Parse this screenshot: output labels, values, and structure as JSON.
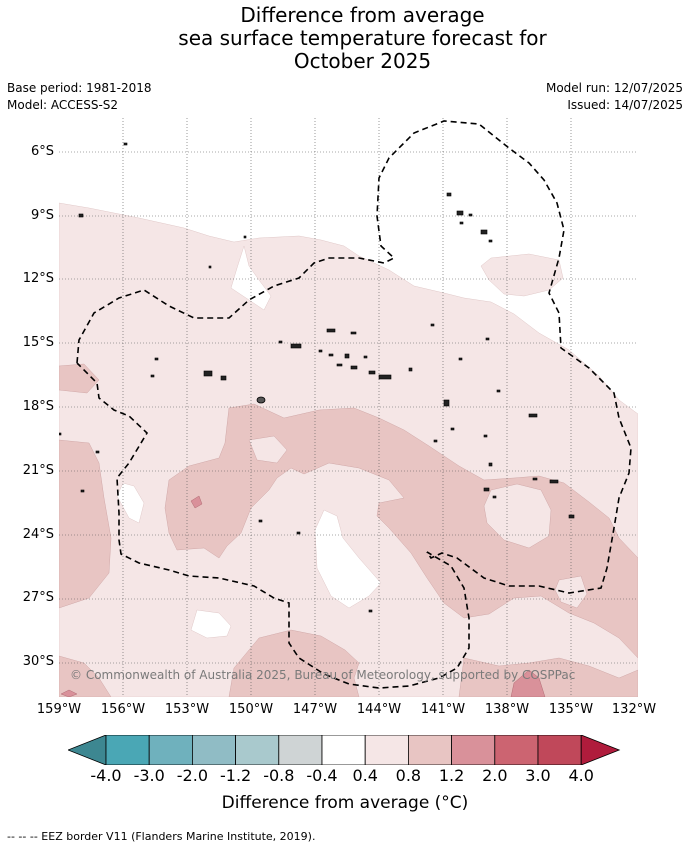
{
  "title": {
    "line1": "Difference from average",
    "line2": "sea surface temperature forecast for",
    "line3": "October 2025"
  },
  "meta": {
    "base_period": "Base period: 1981-2018",
    "model": "Model: ACCESS-S2",
    "model_run": "Model run: 12/07/2025",
    "issued": "Issued: 14/07/2025"
  },
  "map": {
    "lat_ticks": [
      "6°S",
      "9°S",
      "12°S",
      "15°S",
      "18°S",
      "21°S",
      "24°S",
      "27°S",
      "30°S"
    ],
    "lon_ticks": [
      "159°W",
      "156°W",
      "153°W",
      "150°W",
      "147°W",
      "144°W",
      "141°W",
      "138°W",
      "135°W",
      "132°W"
    ],
    "copyright": "© Commonwealth of Australia 2025, Bureau of Meteorology, supported by COSPPac",
    "colors": {
      "neutral": "#ffffff",
      "light_warm": "#f5e6e6",
      "warm": "#e8c5c3",
      "strong_warm": "#d9919a",
      "eez_border": "#000000"
    }
  },
  "colorbar": {
    "ticks": [
      "-4.0",
      "-3.0",
      "-2.0",
      "-1.2",
      "-0.8",
      "-0.4",
      "0.4",
      "0.8",
      "1.2",
      "2.0",
      "3.0",
      "4.0"
    ],
    "colors": [
      "#3d8791",
      "#4aa7b5",
      "#6fb1bd",
      "#90bcc5",
      "#a9c9cd",
      "#cfd4d5",
      "#ffffff",
      "#f5e6e6",
      "#e8c5c3",
      "#d9919a",
      "#cc6471",
      "#c0485a",
      "#b01c3c"
    ],
    "label": "Difference from average (°C)"
  },
  "footer": {
    "legend": "--  --  -- EEZ border V11 (Flanders Marine Institute, 2019)."
  }
}
